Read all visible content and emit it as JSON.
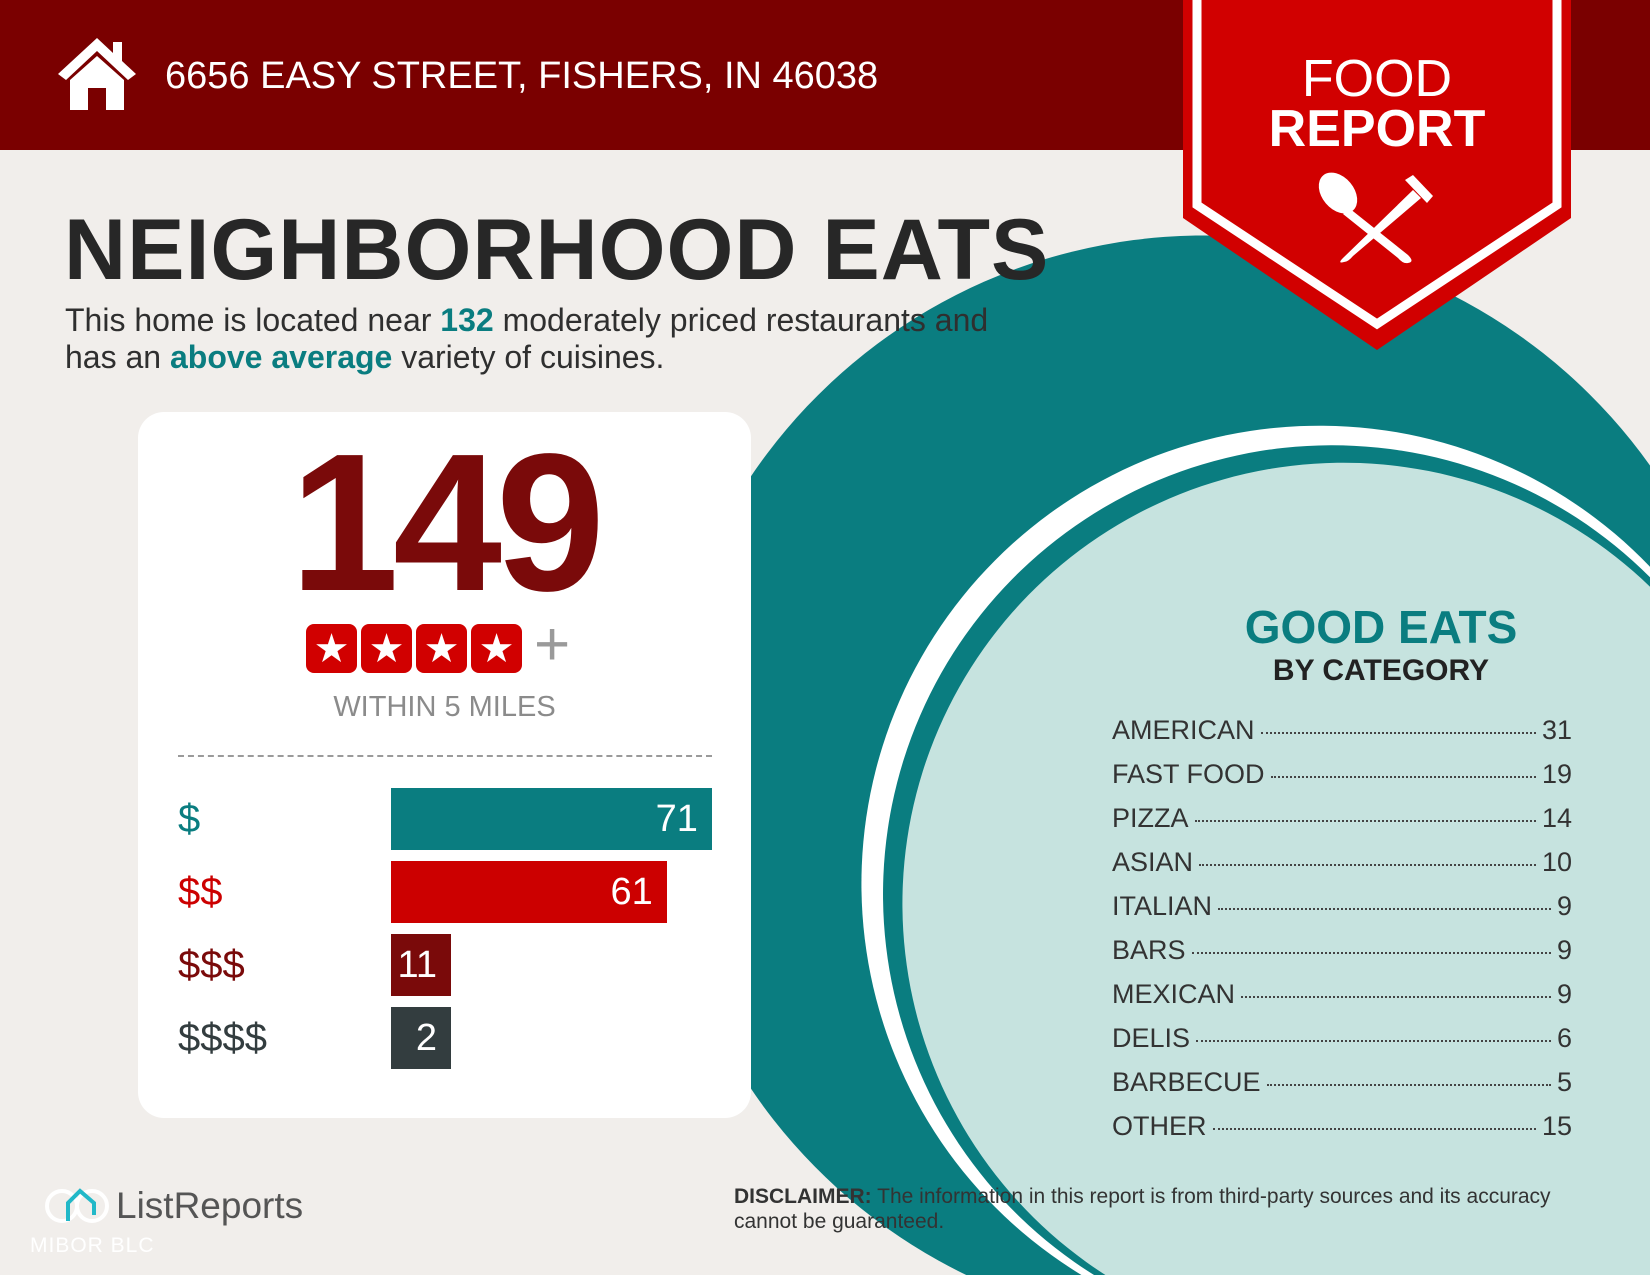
{
  "header": {
    "address": "6656 EASY STREET, FISHERS, IN 46038",
    "icon": "home-icon"
  },
  "banner": {
    "line1": "FOOD",
    "line2": "REPORT",
    "icon": "spoon-fork-icon"
  },
  "main": {
    "title": "NEIGHBORHOOD EATS",
    "subtitle_pre": "This home is located near ",
    "subtitle_count": "132",
    "subtitle_mid": " moderately priced restaurants and",
    "subtitle2_pre": "has an ",
    "subtitle2_hl": "above average",
    "subtitle2_post": " variety of cuisines."
  },
  "card": {
    "total": "149",
    "rating_stars": 4,
    "plus": "+",
    "within": "WITHIN 5 MILES",
    "price_tiers": [
      {
        "label": "$",
        "value": 71,
        "color": "#0a7d80"
      },
      {
        "label": "$$",
        "value": 61,
        "color": "#cc0000"
      },
      {
        "label": "$$$",
        "value": 11,
        "color": "#7a0a0a"
      },
      {
        "label": "$$$$",
        "value": 2,
        "color": "#333d3f"
      }
    ]
  },
  "categories": {
    "title": "GOOD EATS",
    "subtitle": "BY CATEGORY",
    "items": [
      {
        "name": "AMERICAN",
        "count": "31"
      },
      {
        "name": "FAST FOOD",
        "count": "19"
      },
      {
        "name": "PIZZA",
        "count": "14"
      },
      {
        "name": "ASIAN",
        "count": "10"
      },
      {
        "name": "ITALIAN",
        "count": "9"
      },
      {
        "name": "BARS",
        "count": "9"
      },
      {
        "name": "MEXICAN",
        "count": "9"
      },
      {
        "name": "DELIS",
        "count": "6"
      },
      {
        "name": "BARBECUE",
        "count": "5"
      },
      {
        "name": "OTHER",
        "count": "15"
      }
    ]
  },
  "footer": {
    "disclaimer_label": "DISCLAIMER:",
    "disclaimer_text": " The information in this report is from third-party sources and its accuracy cannot be guaranteed.",
    "logo": "ListReports",
    "logo_sub": "MIBOR BLC"
  },
  "colors": {
    "header": "#7a0000",
    "banner": "#d10000",
    "teal": "#0a7d80",
    "light_teal": "#c6e3df",
    "background": "#f1eeeb"
  }
}
